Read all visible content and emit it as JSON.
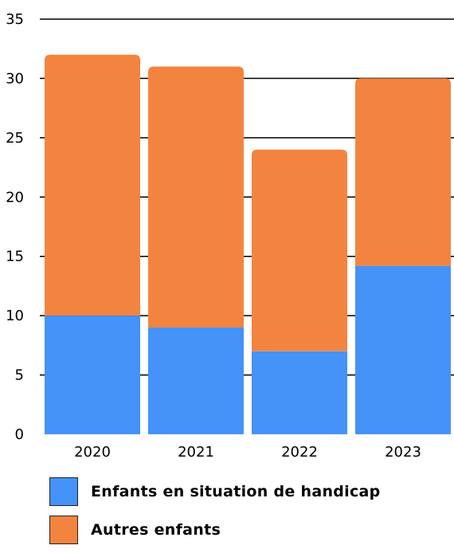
{
  "chart_data": {
    "type": "bar",
    "stacked": true,
    "title": "",
    "xlabel": "",
    "ylabel": "",
    "categories": [
      "2020",
      "2021",
      "2022",
      "2023"
    ],
    "series": [
      {
        "name": "Enfants en situation de handicap",
        "color": "#4592F9",
        "values": [
          10,
          9,
          7,
          14.2
        ]
      },
      {
        "name": "Autres enfants",
        "color": "#F3843F",
        "values": [
          22,
          22,
          17,
          15.8
        ]
      }
    ],
    "ylim": [
      0,
      35
    ],
    "yticks": [
      0,
      5,
      10,
      15,
      20,
      25,
      30,
      35
    ],
    "grid": true,
    "legend_position": "bottom-left"
  }
}
